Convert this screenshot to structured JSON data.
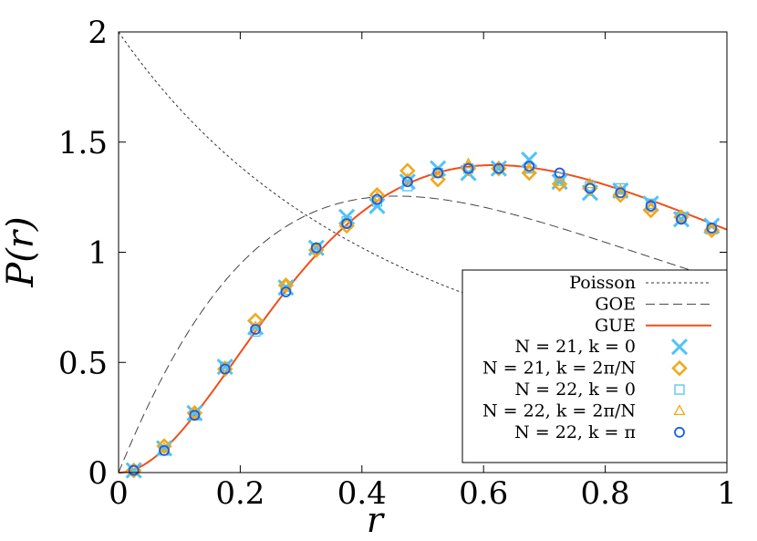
{
  "chart_data": {
    "type": "scatter",
    "xlabel": "r",
    "ylabel": "P(r)",
    "xlim": [
      0,
      1
    ],
    "ylim": [
      0,
      2
    ],
    "x_ticks": [
      "0",
      "0.2",
      "0.4",
      "0.6",
      "0.8",
      "1"
    ],
    "y_ticks": [
      "0",
      "0.5",
      "1",
      "1.5",
      "2"
    ],
    "legend_position": "bottom-right",
    "grid": false,
    "curves": [
      {
        "name": "Poisson",
        "formula": "2/(1+r)^2",
        "color": "#333333",
        "style": "dotted"
      },
      {
        "name": "GOE",
        "formula": "(27/4)(r+r^2)/(1+r+r^2)^2.5",
        "color": "#444444",
        "style": "dashed"
      },
      {
        "name": "GUE",
        "formula": "(81*sqrt(3)/(2*pi))(r+r^2)^2/(1+r+r^2)^4",
        "color": "#f04e18",
        "style": "solid"
      }
    ],
    "x": [
      0.025,
      0.075,
      0.125,
      0.175,
      0.225,
      0.275,
      0.325,
      0.375,
      0.425,
      0.475,
      0.525,
      0.575,
      0.625,
      0.675,
      0.725,
      0.775,
      0.825,
      0.875,
      0.925,
      0.975
    ],
    "series": [
      {
        "name": "N = 21, k = 0",
        "marker": "cross",
        "color": "#4fc3f7",
        "values": [
          0.01,
          0.11,
          0.27,
          0.48,
          0.66,
          0.84,
          1.02,
          1.16,
          1.21,
          1.32,
          1.38,
          1.36,
          1.38,
          1.42,
          1.32,
          1.27,
          1.28,
          1.22,
          1.15,
          1.12
        ]
      },
      {
        "name": "N = 21, k = 2π/N",
        "marker": "diamond",
        "color": "#f0a818",
        "values": [
          0.01,
          0.12,
          0.27,
          0.47,
          0.69,
          0.85,
          1.01,
          1.12,
          1.26,
          1.37,
          1.33,
          1.38,
          1.38,
          1.36,
          1.31,
          1.29,
          1.26,
          1.19,
          1.16,
          1.1
        ]
      },
      {
        "name": "N = 22, k = 0",
        "marker": "square",
        "color": "#4fc3f7",
        "values": [
          0.01,
          0.1,
          0.26,
          0.48,
          0.64,
          0.83,
          1.02,
          1.14,
          1.23,
          1.3,
          1.36,
          1.38,
          1.38,
          1.38,
          1.34,
          1.3,
          1.29,
          1.22,
          1.16,
          1.11
        ]
      },
      {
        "name": "N = 22, k = 2π/N",
        "marker": "triangle",
        "color": "#f0a818",
        "values": [
          0.01,
          0.11,
          0.27,
          0.48,
          0.66,
          0.85,
          1.02,
          1.13,
          1.25,
          1.33,
          1.36,
          1.4,
          1.38,
          1.38,
          1.32,
          1.31,
          1.28,
          1.2,
          1.16,
          1.1
        ]
      },
      {
        "name": "N = 22, k = π",
        "marker": "circle",
        "color": "#1a5ce6",
        "values": [
          0.01,
          0.1,
          0.26,
          0.47,
          0.65,
          0.82,
          1.02,
          1.13,
          1.24,
          1.32,
          1.36,
          1.38,
          1.38,
          1.39,
          1.36,
          1.29,
          1.27,
          1.21,
          1.15,
          1.11
        ]
      }
    ]
  }
}
